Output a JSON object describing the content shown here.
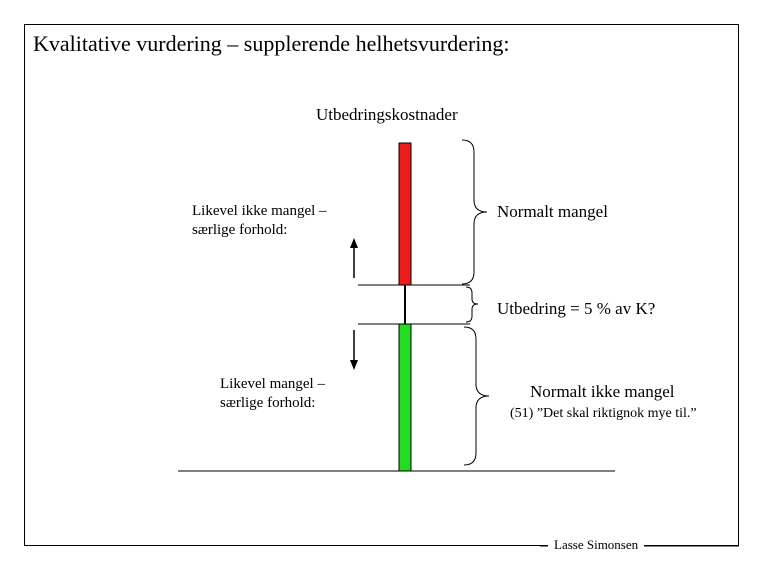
{
  "slide": {
    "title": "Kvalitative vurdering – supplerende helhetsvurdering:",
    "author": "Lasse Simonsen"
  },
  "diagram": {
    "axis_label": "Utbedringskostnader",
    "up_arrow_label": [
      "Likevel ikke mangel –",
      "særlige forhold:"
    ],
    "down_arrow_label": [
      "Likevel mangel –",
      "særlige forhold:"
    ],
    "brackets": [
      {
        "label": "Normalt mangel"
      },
      {
        "label": "Utbedring = 5 % av K?"
      },
      {
        "label": "Normalt ikke mangel",
        "note": "(51) ”Det skal riktignok mye til.”"
      }
    ],
    "colors": {
      "upper_bar": "#ee1c1c",
      "lower_bar": "#22dd22",
      "line": "#000000"
    }
  }
}
